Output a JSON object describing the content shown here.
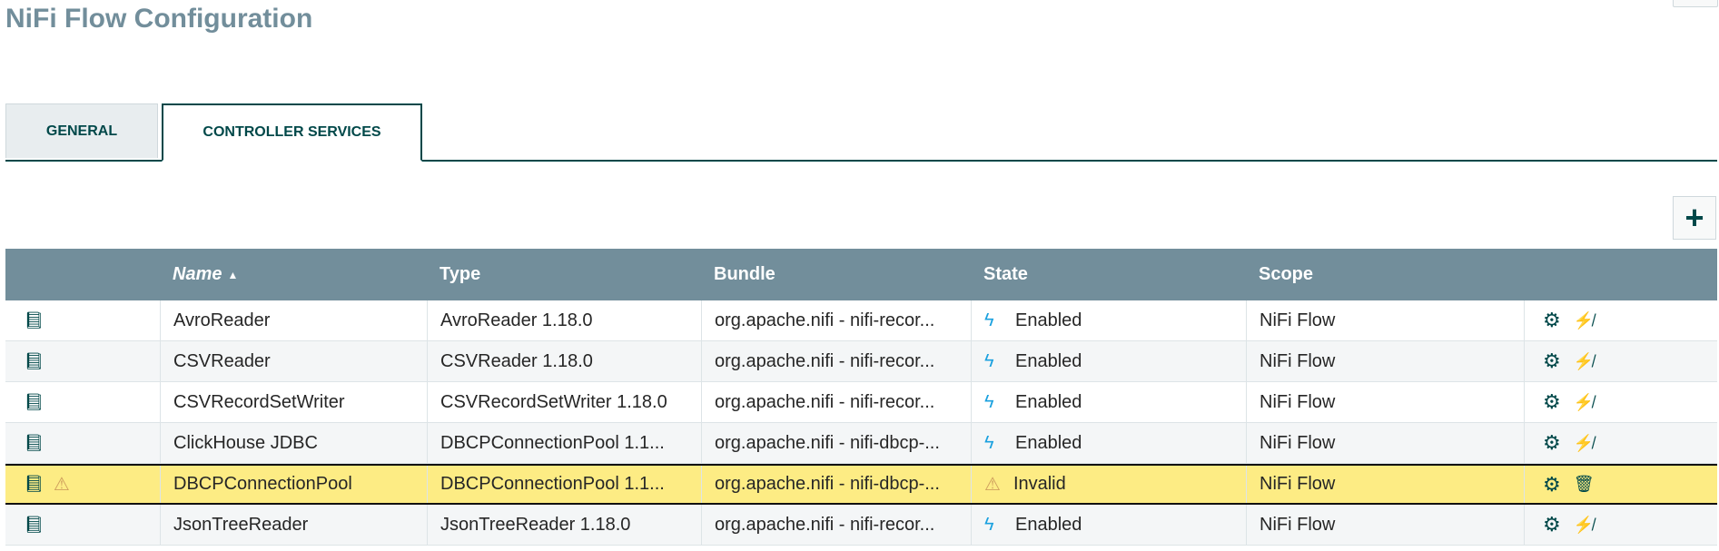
{
  "header": {
    "title": "NiFi Flow Configuration"
  },
  "tabs": [
    {
      "label": "GENERAL",
      "active": false
    },
    {
      "label": "CONTROLLER SERVICES",
      "active": true
    }
  ],
  "add_button": {
    "label": "+"
  },
  "table": {
    "columns": [
      "",
      "Name",
      "Type",
      "Bundle",
      "State",
      "Scope",
      ""
    ],
    "sort": {
      "column": "Name",
      "direction": "ascending",
      "indicator": "▲"
    },
    "rows": [
      {
        "name": "AvroReader",
        "type": "AvroReader 1.18.0",
        "bundle": "org.apache.nifi - nifi-recor...",
        "state": "Enabled",
        "scope": "NiFi Flow",
        "warning": false,
        "icons": {
          "state": "⚡",
          "action2": "disable-icon"
        }
      },
      {
        "name": "CSVReader",
        "type": "CSVReader 1.18.0",
        "bundle": "org.apache.nifi - nifi-recor...",
        "state": "Enabled",
        "scope": "NiFi Flow",
        "warning": false,
        "icons": {
          "state": "⚡",
          "action2": "disable-icon"
        }
      },
      {
        "name": "CSVRecordSetWriter",
        "type": "CSVRecordSetWriter 1.18.0",
        "bundle": "org.apache.nifi - nifi-recor...",
        "state": "Enabled",
        "scope": "NiFi Flow",
        "warning": false,
        "icons": {
          "state": "⚡",
          "action2": "disable-icon"
        }
      },
      {
        "name": "ClickHouse JDBC",
        "type": "DBCPConnectionPool 1.1...",
        "bundle": "org.apache.nifi - nifi-dbcp-...",
        "state": "Enabled",
        "scope": "NiFi Flow",
        "warning": false,
        "icons": {
          "state": "⚡",
          "action2": "disable-icon"
        }
      },
      {
        "name": "DBCPConnectionPool",
        "type": "DBCPConnectionPool 1.1...",
        "bundle": "org.apache.nifi - nifi-dbcp-...",
        "state": "Invalid",
        "scope": "NiFi Flow",
        "warning": true,
        "selected": true,
        "icons": {
          "state": "⚠",
          "action2": "trash-icon"
        }
      },
      {
        "name": "JsonTreeReader",
        "type": "JsonTreeReader 1.18.0",
        "bundle": "org.apache.nifi - nifi-recor...",
        "state": "Enabled",
        "scope": "NiFi Flow",
        "warning": false,
        "icons": {
          "state": "⚡",
          "action2": "disable-icon"
        }
      }
    ]
  },
  "colors": {
    "accent": "#004849",
    "header_bg": "#728e9b",
    "highlight": "#fdec84",
    "enabled": "#1ba1df",
    "warning": "#cf9f5d"
  }
}
